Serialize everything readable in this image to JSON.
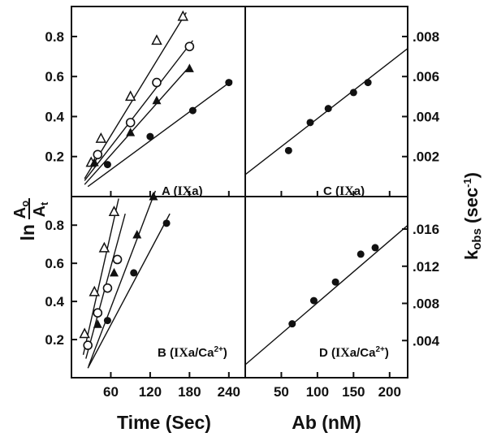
{
  "x_axis_titles": {
    "left": "Time (Sec)",
    "right": "Ab (nM)"
  },
  "y_axis_titles": {
    "left": {
      "prefix": "ln",
      "numerator": "A",
      "numerator_sub": "o",
      "denominator": "A",
      "denominator_sub": "t"
    },
    "right": {
      "main": "k",
      "sub": "obs",
      "unit_open": " (sec",
      "unit_sup": "-1",
      "unit_close": ")"
    }
  },
  "colors": {
    "axis": "#111111",
    "marker": "#111111",
    "background": "#ffffff"
  },
  "chart_data": [
    {
      "panel": "A",
      "label": "A (IXa)",
      "type": "scatter",
      "xlim": [
        0,
        265
      ],
      "ylim": [
        0,
        0.95
      ],
      "xticks": [
        60,
        120,
        180,
        240
      ],
      "xtick_labels": [
        "60",
        "120",
        "180",
        "240"
      ],
      "show_xtick_labels": false,
      "yticks": [
        0.2,
        0.4,
        0.6,
        0.8
      ],
      "ytick_labels": [
        "0.2",
        "0.4",
        "0.6",
        "0.8"
      ],
      "series": [
        {
          "marker": "open-triangle",
          "x": [
            30,
            45,
            90,
            130,
            170
          ],
          "y": [
            0.17,
            0.29,
            0.5,
            0.78,
            0.9
          ],
          "fit": [
            [
              20,
              0.09
            ],
            [
              175,
              0.92
            ]
          ]
        },
        {
          "marker": "open-circle",
          "x": [
            40,
            90,
            130,
            180
          ],
          "y": [
            0.21,
            0.37,
            0.57,
            0.75
          ],
          "fit": [
            [
              20,
              0.08
            ],
            [
              185,
              0.78
            ]
          ]
        },
        {
          "marker": "filled-triangle",
          "x": [
            35,
            90,
            130,
            180
          ],
          "y": [
            0.17,
            0.32,
            0.48,
            0.64
          ],
          "fit": [
            [
              20,
              0.06
            ],
            [
              180,
              0.65
            ]
          ]
        },
        {
          "marker": "filled-circle",
          "x": [
            55,
            120,
            185,
            240
          ],
          "y": [
            0.16,
            0.3,
            0.43,
            0.57
          ],
          "fit": [
            [
              25,
              0.05
            ],
            [
              245,
              0.58
            ]
          ]
        }
      ]
    },
    {
      "panel": "B",
      "label": "B (IXa/Ca2+)",
      "type": "scatter",
      "xlim": [
        0,
        265
      ],
      "ylim": [
        0,
        0.95
      ],
      "xticks": [
        60,
        120,
        180,
        240
      ],
      "xtick_labels": [
        "60",
        "120",
        "180",
        "240"
      ],
      "show_xtick_labels": true,
      "yticks": [
        0.2,
        0.4,
        0.6,
        0.8
      ],
      "ytick_labels": [
        "0.2",
        "0.4",
        "0.6",
        "0.8"
      ],
      "series": [
        {
          "marker": "open-triangle",
          "x": [
            20,
            35,
            50,
            65
          ],
          "y": [
            0.23,
            0.45,
            0.68,
            0.87
          ],
          "fit": [
            [
              18,
              0.12
            ],
            [
              72,
              0.94
            ]
          ]
        },
        {
          "marker": "open-circle",
          "x": [
            25,
            40,
            55,
            70
          ],
          "y": [
            0.17,
            0.34,
            0.47,
            0.62
          ],
          "fit": [
            [
              22,
              0.1
            ],
            [
              82,
              0.86
            ]
          ]
        },
        {
          "marker": "filled-triangle",
          "x": [
            40,
            65,
            100,
            125
          ],
          "y": [
            0.28,
            0.55,
            0.75,
            0.95
          ],
          "fit": [
            [
              26,
              0.06
            ],
            [
              128,
              0.98
            ]
          ]
        },
        {
          "marker": "filled-circle",
          "x": [
            55,
            95,
            145
          ],
          "y": [
            0.3,
            0.55,
            0.81
          ],
          "fit": [
            [
              25,
              0.05
            ],
            [
              150,
              0.86
            ]
          ]
        }
      ]
    },
    {
      "panel": "C",
      "label": "C (IXa)",
      "type": "scatter",
      "xlim": [
        0,
        225
      ],
      "ylim": [
        0,
        0.0095
      ],
      "xticks": [
        50,
        100,
        150,
        200
      ],
      "xtick_labels": [
        "50",
        "100",
        "150",
        "200"
      ],
      "show_xtick_labels": false,
      "yticks": [
        0.002,
        0.004,
        0.006,
        0.008
      ],
      "ytick_labels": [
        ".002",
        ".004",
        ".006",
        ".008"
      ],
      "series": [
        {
          "marker": "filled-circle",
          "x": [
            60,
            90,
            115,
            150,
            170
          ],
          "y": [
            0.0023,
            0.0037,
            0.0044,
            0.0052,
            0.0057
          ],
          "fit": [
            [
              0,
              0.0011
            ],
            [
              225,
              0.0074
            ]
          ]
        }
      ]
    },
    {
      "panel": "D",
      "label": "D (IXa/Ca2+)",
      "type": "scatter",
      "xlim": [
        0,
        225
      ],
      "ylim": [
        0,
        0.0195
      ],
      "xticks": [
        50,
        100,
        150,
        200
      ],
      "xtick_labels": [
        "50",
        "100",
        "150",
        "200"
      ],
      "show_xtick_labels": true,
      "yticks": [
        0.004,
        0.008,
        0.012,
        0.016
      ],
      "ytick_labels": [
        ".004",
        ".008",
        ".012",
        ".016"
      ],
      "series": [
        {
          "marker": "filled-circle",
          "x": [
            65,
            95,
            125,
            160,
            180
          ],
          "y": [
            0.0058,
            0.0083,
            0.0103,
            0.0133,
            0.014
          ],
          "fit": [
            [
              0,
              0.0014
            ],
            [
              225,
              0.0164
            ]
          ]
        }
      ]
    }
  ]
}
